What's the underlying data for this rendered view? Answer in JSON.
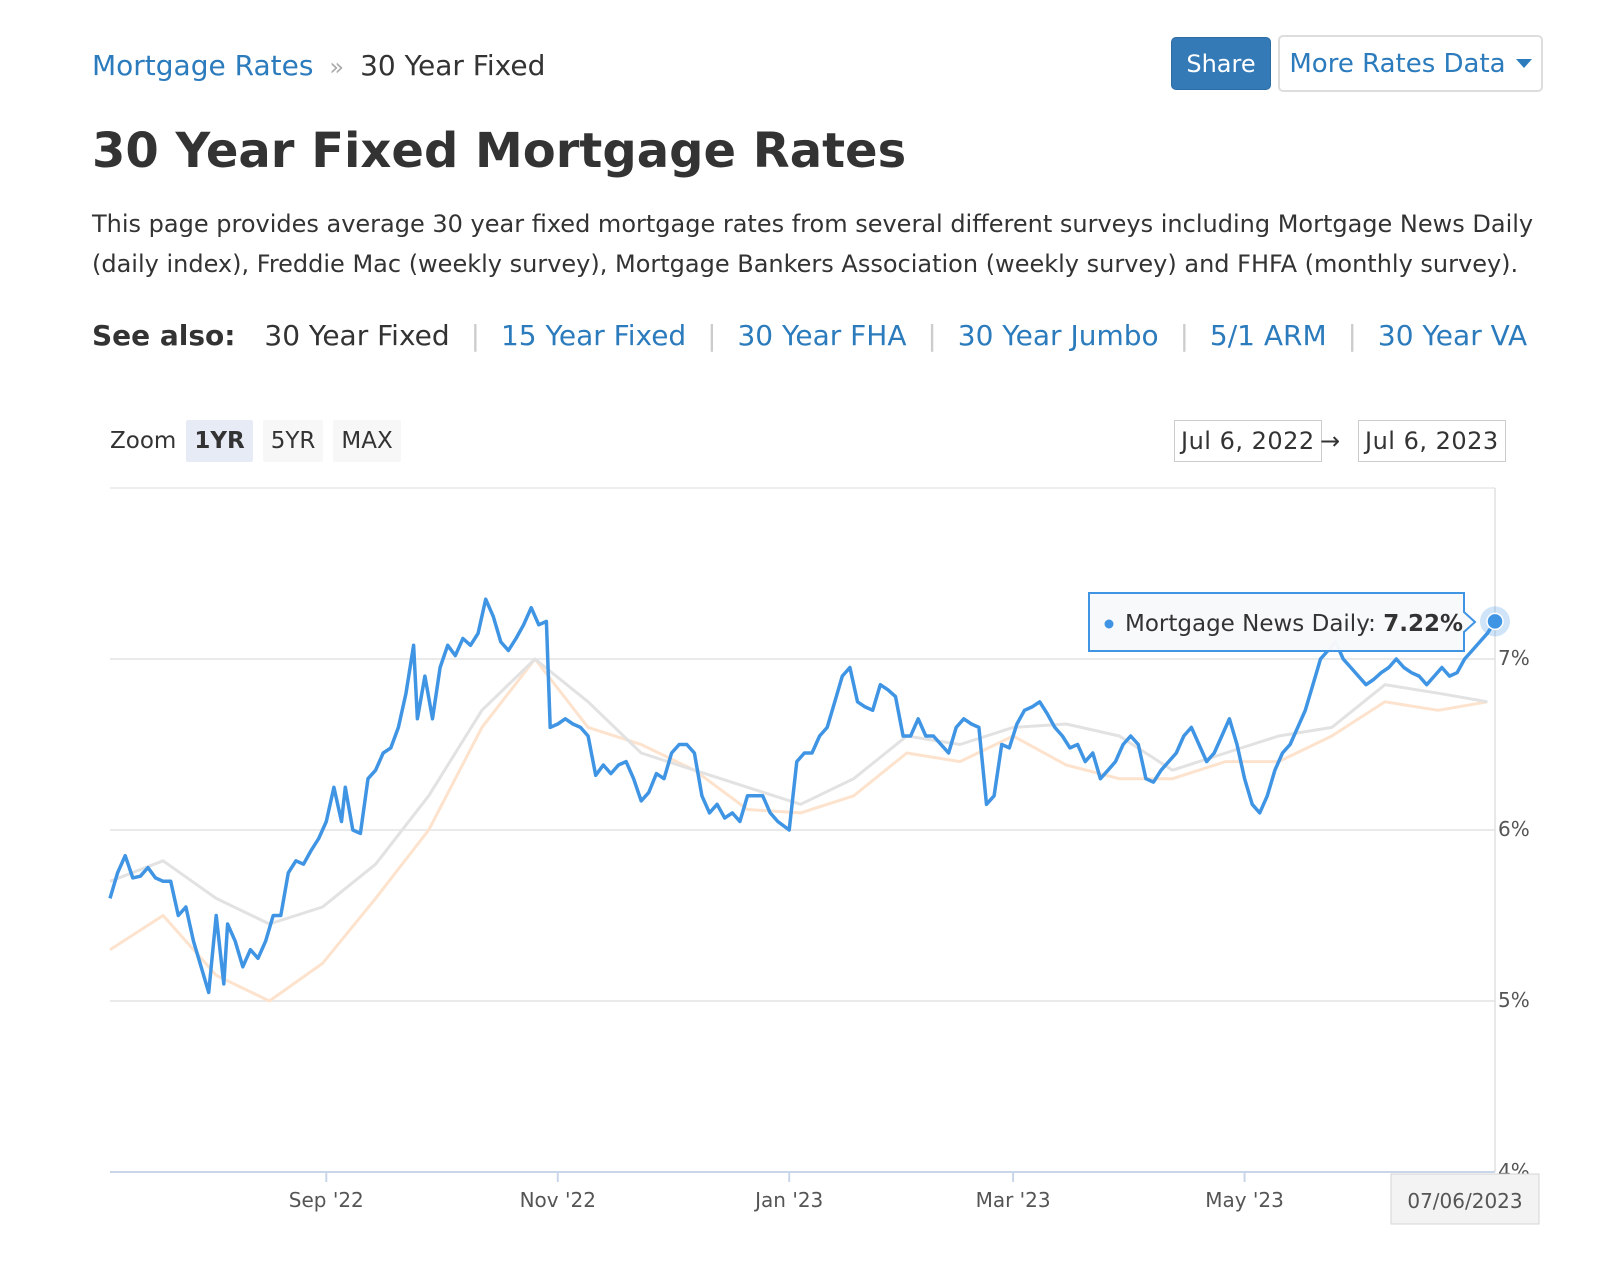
{
  "breadcrumb": {
    "parent": "Mortgage Rates",
    "separator": "»",
    "current": "30 Year Fixed"
  },
  "buttons": {
    "share": "Share",
    "more_rates": "More Rates Data"
  },
  "page": {
    "title": "30 Year Fixed Mortgage Rates",
    "description": "This page provides average 30 year fixed mortgage rates from several different surveys including Mortgage News Daily (daily index), Freddie Mac (weekly survey), Mortgage Bankers Association (weekly survey) and FHFA (monthly survey)."
  },
  "see_also": {
    "label": "See also:",
    "current": "30 Year Fixed",
    "links": [
      "15 Year Fixed",
      "30 Year FHA",
      "30 Year Jumbo",
      "5/1 ARM",
      "30 Year VA"
    ]
  },
  "zoom": {
    "label": "Zoom",
    "options": [
      "1YR",
      "5YR",
      "MAX"
    ],
    "active": "1YR"
  },
  "range": {
    "from": "Jul 6, 2022",
    "arrow": "→",
    "to": "Jul 6, 2023"
  },
  "tooltip": {
    "series": "Mortgage News Daily:",
    "value": "7.22%"
  },
  "crosshair_label": "07/06/2023",
  "colors": {
    "accent": "#2b7bbd",
    "mnd": "#3f95e4",
    "gray_series": "#e2e2e2",
    "orange_series": "#fde3cd"
  },
  "chart_data": {
    "type": "line",
    "x_ticks": [
      "Sep '22",
      "Nov '22",
      "Jan '23",
      "Mar '23",
      "May '23"
    ],
    "y_ticks": [
      "4%",
      "5%",
      "6%",
      "7%"
    ],
    "ylim": [
      4,
      8
    ],
    "grid": true,
    "legend": "none",
    "series": [
      {
        "name": "Mortgage News Daily",
        "values": [
          [
            "2022-07-06",
            5.6
          ],
          [
            "2022-07-08",
            5.75
          ],
          [
            "2022-07-10",
            5.85
          ],
          [
            "2022-07-12",
            5.72
          ],
          [
            "2022-07-14",
            5.73
          ],
          [
            "2022-07-16",
            5.78
          ],
          [
            "2022-07-18",
            5.72
          ],
          [
            "2022-07-20",
            5.7
          ],
          [
            "2022-07-22",
            5.7
          ],
          [
            "2022-07-24",
            5.5
          ],
          [
            "2022-07-26",
            5.55
          ],
          [
            "2022-07-28",
            5.35
          ],
          [
            "2022-07-30",
            5.2
          ],
          [
            "2022-08-01",
            5.05
          ],
          [
            "2022-08-03",
            5.5
          ],
          [
            "2022-08-05",
            5.1
          ],
          [
            "2022-08-06",
            5.45
          ],
          [
            "2022-08-08",
            5.35
          ],
          [
            "2022-08-10",
            5.2
          ],
          [
            "2022-08-12",
            5.3
          ],
          [
            "2022-08-14",
            5.25
          ],
          [
            "2022-08-16",
            5.35
          ],
          [
            "2022-08-18",
            5.5
          ],
          [
            "2022-08-20",
            5.5
          ],
          [
            "2022-08-22",
            5.75
          ],
          [
            "2022-08-24",
            5.82
          ],
          [
            "2022-08-26",
            5.8
          ],
          [
            "2022-08-28",
            5.88
          ],
          [
            "2022-08-30",
            5.95
          ],
          [
            "2022-09-01",
            6.05
          ],
          [
            "2022-09-03",
            6.25
          ],
          [
            "2022-09-05",
            6.05
          ],
          [
            "2022-09-06",
            6.25
          ],
          [
            "2022-09-08",
            6.0
          ],
          [
            "2022-09-10",
            5.98
          ],
          [
            "2022-09-12",
            6.3
          ],
          [
            "2022-09-14",
            6.35
          ],
          [
            "2022-09-16",
            6.45
          ],
          [
            "2022-09-18",
            6.48
          ],
          [
            "2022-09-20",
            6.6
          ],
          [
            "2022-09-22",
            6.8
          ],
          [
            "2022-09-24",
            7.08
          ],
          [
            "2022-09-25",
            6.65
          ],
          [
            "2022-09-27",
            6.9
          ],
          [
            "2022-09-29",
            6.65
          ],
          [
            "2022-10-01",
            6.95
          ],
          [
            "2022-10-03",
            7.08
          ],
          [
            "2022-10-05",
            7.02
          ],
          [
            "2022-10-07",
            7.12
          ],
          [
            "2022-10-09",
            7.08
          ],
          [
            "2022-10-11",
            7.15
          ],
          [
            "2022-10-13",
            7.35
          ],
          [
            "2022-10-15",
            7.25
          ],
          [
            "2022-10-17",
            7.1
          ],
          [
            "2022-10-19",
            7.05
          ],
          [
            "2022-10-21",
            7.12
          ],
          [
            "2022-10-23",
            7.2
          ],
          [
            "2022-10-25",
            7.3
          ],
          [
            "2022-10-27",
            7.2
          ],
          [
            "2022-10-29",
            7.22
          ],
          [
            "2022-10-30",
            6.6
          ],
          [
            "2022-11-01",
            6.62
          ],
          [
            "2022-11-03",
            6.65
          ],
          [
            "2022-11-05",
            6.62
          ],
          [
            "2022-11-07",
            6.6
          ],
          [
            "2022-11-09",
            6.55
          ],
          [
            "2022-11-11",
            6.32
          ],
          [
            "2022-11-13",
            6.38
          ],
          [
            "2022-11-15",
            6.33
          ],
          [
            "2022-11-17",
            6.38
          ],
          [
            "2022-11-19",
            6.4
          ],
          [
            "2022-11-21",
            6.3
          ],
          [
            "2022-11-23",
            6.17
          ],
          [
            "2022-11-25",
            6.22
          ],
          [
            "2022-11-27",
            6.33
          ],
          [
            "2022-11-29",
            6.3
          ],
          [
            "2022-12-01",
            6.45
          ],
          [
            "2022-12-03",
            6.5
          ],
          [
            "2022-12-05",
            6.5
          ],
          [
            "2022-12-07",
            6.45
          ],
          [
            "2022-12-09",
            6.2
          ],
          [
            "2022-12-11",
            6.1
          ],
          [
            "2022-12-13",
            6.15
          ],
          [
            "2022-12-15",
            6.07
          ],
          [
            "2022-12-17",
            6.1
          ],
          [
            "2022-12-19",
            6.05
          ],
          [
            "2022-12-21",
            6.2
          ],
          [
            "2022-12-23",
            6.2
          ],
          [
            "2022-12-25",
            6.2
          ],
          [
            "2022-12-27",
            6.1
          ],
          [
            "2022-12-29",
            6.05
          ],
          [
            "2023-01-01",
            6.0
          ],
          [
            "2023-01-03",
            6.4
          ],
          [
            "2023-01-05",
            6.45
          ],
          [
            "2023-01-07",
            6.45
          ],
          [
            "2023-01-09",
            6.55
          ],
          [
            "2023-01-11",
            6.6
          ],
          [
            "2023-01-13",
            6.75
          ],
          [
            "2023-01-15",
            6.9
          ],
          [
            "2023-01-17",
            6.95
          ],
          [
            "2023-01-19",
            6.75
          ],
          [
            "2023-01-21",
            6.72
          ],
          [
            "2023-01-23",
            6.7
          ],
          [
            "2023-01-25",
            6.85
          ],
          [
            "2023-01-27",
            6.82
          ],
          [
            "2023-01-29",
            6.78
          ],
          [
            "2023-01-31",
            6.55
          ],
          [
            "2023-02-02",
            6.55
          ],
          [
            "2023-02-04",
            6.65
          ],
          [
            "2023-02-06",
            6.55
          ],
          [
            "2023-02-08",
            6.55
          ],
          [
            "2023-02-10",
            6.5
          ],
          [
            "2023-02-12",
            6.45
          ],
          [
            "2023-02-14",
            6.6
          ],
          [
            "2023-02-16",
            6.65
          ],
          [
            "2023-02-18",
            6.62
          ],
          [
            "2023-02-20",
            6.6
          ],
          [
            "2023-02-22",
            6.15
          ],
          [
            "2023-02-24",
            6.2
          ],
          [
            "2023-02-26",
            6.5
          ],
          [
            "2023-02-28",
            6.48
          ],
          [
            "2023-03-02",
            6.62
          ],
          [
            "2023-03-04",
            6.7
          ],
          [
            "2023-03-06",
            6.72
          ],
          [
            "2023-03-08",
            6.75
          ],
          [
            "2023-03-10",
            6.68
          ],
          [
            "2023-03-12",
            6.6
          ],
          [
            "2023-03-14",
            6.55
          ],
          [
            "2023-03-16",
            6.48
          ],
          [
            "2023-03-18",
            6.5
          ],
          [
            "2023-03-20",
            6.4
          ],
          [
            "2023-03-22",
            6.45
          ],
          [
            "2023-03-24",
            6.3
          ],
          [
            "2023-03-26",
            6.35
          ],
          [
            "2023-03-28",
            6.4
          ],
          [
            "2023-03-30",
            6.5
          ],
          [
            "2023-04-01",
            6.55
          ],
          [
            "2023-04-03",
            6.5
          ],
          [
            "2023-04-05",
            6.3
          ],
          [
            "2023-04-07",
            6.28
          ],
          [
            "2023-04-09",
            6.35
          ],
          [
            "2023-04-11",
            6.4
          ],
          [
            "2023-04-13",
            6.45
          ],
          [
            "2023-04-15",
            6.55
          ],
          [
            "2023-04-17",
            6.6
          ],
          [
            "2023-04-19",
            6.5
          ],
          [
            "2023-04-21",
            6.4
          ],
          [
            "2023-04-23",
            6.45
          ],
          [
            "2023-04-25",
            6.55
          ],
          [
            "2023-04-27",
            6.65
          ],
          [
            "2023-04-29",
            6.5
          ],
          [
            "2023-05-01",
            6.3
          ],
          [
            "2023-05-03",
            6.15
          ],
          [
            "2023-05-05",
            6.1
          ],
          [
            "2023-05-07",
            6.2
          ],
          [
            "2023-05-09",
            6.35
          ],
          [
            "2023-05-11",
            6.45
          ],
          [
            "2023-05-13",
            6.5
          ],
          [
            "2023-05-15",
            6.6
          ],
          [
            "2023-05-17",
            6.7
          ],
          [
            "2023-05-19",
            6.85
          ],
          [
            "2023-05-21",
            7.0
          ],
          [
            "2023-05-23",
            7.05
          ],
          [
            "2023-05-25",
            7.1
          ],
          [
            "2023-05-27",
            7.0
          ],
          [
            "2023-05-29",
            6.95
          ],
          [
            "2023-05-31",
            6.9
          ],
          [
            "2023-06-02",
            6.85
          ],
          [
            "2023-06-04",
            6.88
          ],
          [
            "2023-06-06",
            6.92
          ],
          [
            "2023-06-08",
            6.95
          ],
          [
            "2023-06-10",
            7.0
          ],
          [
            "2023-06-12",
            6.95
          ],
          [
            "2023-06-14",
            6.92
          ],
          [
            "2023-06-16",
            6.9
          ],
          [
            "2023-06-18",
            6.85
          ],
          [
            "2023-06-20",
            6.9
          ],
          [
            "2023-06-22",
            6.95
          ],
          [
            "2023-06-24",
            6.9
          ],
          [
            "2023-06-26",
            6.92
          ],
          [
            "2023-06-28",
            7.0
          ],
          [
            "2023-06-30",
            7.05
          ],
          [
            "2023-07-02",
            7.1
          ],
          [
            "2023-07-04",
            7.15
          ],
          [
            "2023-07-06",
            7.22
          ]
        ]
      },
      {
        "values": [
          [
            "2022-07-06",
            5.7
          ],
          [
            "2022-07-20",
            5.82
          ],
          [
            "2022-08-03",
            5.6
          ],
          [
            "2022-08-17",
            5.45
          ],
          [
            "2022-08-31",
            5.55
          ],
          [
            "2022-09-14",
            5.8
          ],
          [
            "2022-09-28",
            6.2
          ],
          [
            "2022-10-12",
            6.7
          ],
          [
            "2022-10-26",
            7.0
          ],
          [
            "2022-11-09",
            6.75
          ],
          [
            "2022-11-23",
            6.45
          ],
          [
            "2022-12-07",
            6.35
          ],
          [
            "2022-12-21",
            6.25
          ],
          [
            "2023-01-04",
            6.15
          ],
          [
            "2023-01-18",
            6.3
          ],
          [
            "2023-02-01",
            6.55
          ],
          [
            "2023-02-15",
            6.5
          ],
          [
            "2023-03-01",
            6.6
          ],
          [
            "2023-03-15",
            6.62
          ],
          [
            "2023-03-29",
            6.55
          ],
          [
            "2023-04-12",
            6.35
          ],
          [
            "2023-04-26",
            6.45
          ],
          [
            "2023-05-10",
            6.55
          ],
          [
            "2023-05-24",
            6.6
          ],
          [
            "2023-06-07",
            6.85
          ],
          [
            "2023-06-21",
            6.8
          ],
          [
            "2023-07-04",
            6.75
          ]
        ]
      },
      {
        "values": [
          [
            "2022-07-06",
            5.3
          ],
          [
            "2022-07-20",
            5.5
          ],
          [
            "2022-08-03",
            5.15
          ],
          [
            "2022-08-17",
            5.0
          ],
          [
            "2022-08-31",
            5.22
          ],
          [
            "2022-09-14",
            5.6
          ],
          [
            "2022-09-28",
            6.0
          ],
          [
            "2022-10-12",
            6.6
          ],
          [
            "2022-10-26",
            7.0
          ],
          [
            "2022-11-09",
            6.6
          ],
          [
            "2022-11-23",
            6.5
          ],
          [
            "2022-12-07",
            6.35
          ],
          [
            "2022-12-21",
            6.12
          ],
          [
            "2023-01-04",
            6.1
          ],
          [
            "2023-01-18",
            6.2
          ],
          [
            "2023-02-01",
            6.45
          ],
          [
            "2023-02-15",
            6.4
          ],
          [
            "2023-03-01",
            6.55
          ],
          [
            "2023-03-15",
            6.38
          ],
          [
            "2023-03-29",
            6.3
          ],
          [
            "2023-04-12",
            6.3
          ],
          [
            "2023-04-26",
            6.4
          ],
          [
            "2023-05-10",
            6.4
          ],
          [
            "2023-05-24",
            6.55
          ],
          [
            "2023-06-07",
            6.75
          ],
          [
            "2023-06-21",
            6.7
          ],
          [
            "2023-07-04",
            6.75
          ]
        ]
      }
    ]
  }
}
